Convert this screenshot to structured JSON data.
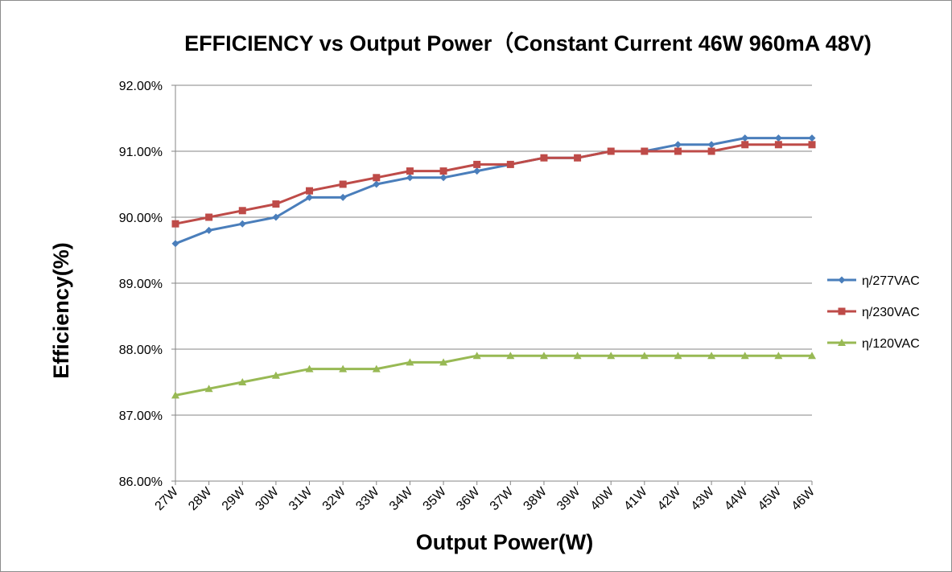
{
  "chart_data": {
    "type": "line",
    "title": "EFFICIENCY vs Output Power（Constant Current 46W 960mA 48V)",
    "xlabel": "Output Power(W)",
    "ylabel": "Efficiency(%)",
    "categories": [
      "27W",
      "28W",
      "29W",
      "30W",
      "31W",
      "32W",
      "33W",
      "34W",
      "35W",
      "36W",
      "37W",
      "38W",
      "39W",
      "40W",
      "41W",
      "42W",
      "43W",
      "44W",
      "45W",
      "46W"
    ],
    "ylim": [
      86.0,
      92.0
    ],
    "yticks": [
      "86.00%",
      "87.00%",
      "88.00%",
      "89.00%",
      "90.00%",
      "91.00%",
      "92.00%"
    ],
    "grid": true,
    "legend_position": "right",
    "series": [
      {
        "name": "η/277VAC",
        "color": "#4a7ebb",
        "marker": "diamond",
        "values": [
          89.6,
          89.8,
          89.9,
          90.0,
          90.3,
          90.3,
          90.5,
          90.6,
          90.6,
          90.7,
          90.8,
          90.9,
          90.9,
          91.0,
          91.0,
          91.1,
          91.1,
          91.2,
          91.2,
          91.2
        ]
      },
      {
        "name": "η/230VAC",
        "color": "#be4b48",
        "marker": "square",
        "values": [
          89.9,
          90.0,
          90.1,
          90.2,
          90.4,
          90.5,
          90.6,
          90.7,
          90.7,
          90.8,
          90.8,
          90.9,
          90.9,
          91.0,
          91.0,
          91.0,
          91.0,
          91.1,
          91.1,
          91.1
        ]
      },
      {
        "name": "η/120VAC",
        "color": "#98b954",
        "marker": "triangle",
        "values": [
          87.3,
          87.4,
          87.5,
          87.6,
          87.7,
          87.7,
          87.7,
          87.8,
          87.8,
          87.9,
          87.9,
          87.9,
          87.9,
          87.9,
          87.9,
          87.9,
          87.9,
          87.9,
          87.9,
          87.9
        ]
      }
    ]
  }
}
